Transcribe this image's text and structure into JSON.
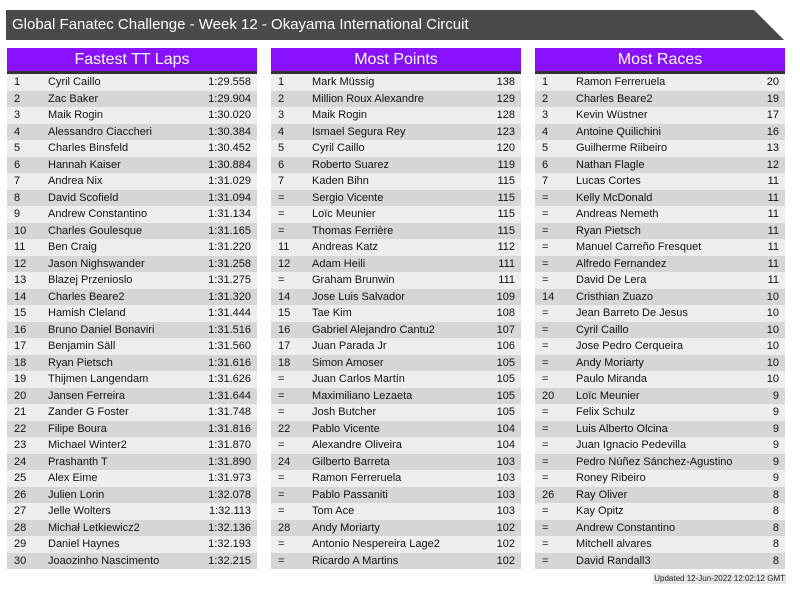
{
  "title": "Global Fanatec Challenge - Week 12 - Okayama International Circuit",
  "colors": {
    "header_bg": "#8811ff",
    "title_bg": "#4a4a4a",
    "row_light": "#eeeeee",
    "row_dark": "#d6d6d6"
  },
  "tables": [
    {
      "heading": "Fastest TT Laps",
      "rows": [
        [
          "1",
          "Cyril Caillo",
          "1:29.558"
        ],
        [
          "2",
          "Zac Baker",
          "1:29.904"
        ],
        [
          "3",
          "Maik Rogin",
          "1:30.020"
        ],
        [
          "4",
          "Alessandro Ciaccheri",
          "1:30.384"
        ],
        [
          "5",
          "Charles Binsfeld",
          "1:30.452"
        ],
        [
          "6",
          "Hannah Kaiser",
          "1:30.884"
        ],
        [
          "7",
          "Andrea Nix",
          "1:31.029"
        ],
        [
          "8",
          "David Scofield",
          "1:31.094"
        ],
        [
          "9",
          "Andrew Constantino",
          "1:31.134"
        ],
        [
          "10",
          "Charles Goulesque",
          "1:31.165"
        ],
        [
          "11",
          "Ben Craig",
          "1:31.220"
        ],
        [
          "12",
          "Jason Nighswander",
          "1:31.258"
        ],
        [
          "13",
          "Blazej Przenioslo",
          "1:31.275"
        ],
        [
          "14",
          "Charles Beare2",
          "1:31.320"
        ],
        [
          "15",
          "Hamish Cleland",
          "1:31.444"
        ],
        [
          "16",
          "Bruno Daniel Bonaviri",
          "1:31.516"
        ],
        [
          "17",
          "Benjamin Säll",
          "1:31.560"
        ],
        [
          "18",
          "Ryan Pietsch",
          "1:31.616"
        ],
        [
          "19",
          "Thijmen Langendam",
          "1:31.626"
        ],
        [
          "20",
          "Jansen Ferreira",
          "1:31.644"
        ],
        [
          "21",
          "Zander G Foster",
          "1:31.748"
        ],
        [
          "22",
          "Filipe Boura",
          "1:31.816"
        ],
        [
          "23",
          "Michael Winter2",
          "1:31.870"
        ],
        [
          "24",
          "Prashanth T",
          "1:31.890"
        ],
        [
          "25",
          "Alex Eime",
          "1:31.973"
        ],
        [
          "26",
          "Julien Lorin",
          "1:32.078"
        ],
        [
          "27",
          "Jelle Wolters",
          "1:32.113"
        ],
        [
          "28",
          "Michał Letkiewicz2",
          "1:32.136"
        ],
        [
          "29",
          "Daniel Haynes",
          "1:32.193"
        ],
        [
          "30",
          "Joaozinho Nascimento",
          "1:32.215"
        ]
      ]
    },
    {
      "heading": "Most Points",
      "rows": [
        [
          "1",
          "Mark Müssig",
          "138"
        ],
        [
          "2",
          "Million Roux Alexandre",
          "129"
        ],
        [
          "3",
          "Maik Rogin",
          "128"
        ],
        [
          "4",
          "Ismael Segura Rey",
          "123"
        ],
        [
          "5",
          "Cyril Caillo",
          "120"
        ],
        [
          "6",
          "Roberto Suarez",
          "119"
        ],
        [
          "7",
          "Kaden Bihn",
          "115"
        ],
        [
          "=",
          "Sergio Vicente",
          "115"
        ],
        [
          "=",
          "Loïc Meunier",
          "115"
        ],
        [
          "=",
          "Thomas Ferrière",
          "115"
        ],
        [
          "11",
          "Andreas Katz",
          "112"
        ],
        [
          "12",
          "Adam Heili",
          "111"
        ],
        [
          "=",
          "Graham Brunwin",
          "111"
        ],
        [
          "14",
          "Jose Luis Salvador",
          "109"
        ],
        [
          "15",
          "Tae Kim",
          "108"
        ],
        [
          "16",
          "Gabriel Alejandro Cantu2",
          "107"
        ],
        [
          "17",
          "Juan Parada Jr",
          "106"
        ],
        [
          "18",
          "Simon Amoser",
          "105"
        ],
        [
          "=",
          "Juan Carlos Martín",
          "105"
        ],
        [
          "=",
          "Maximiliano Lezaeta",
          "105"
        ],
        [
          "=",
          "Josh Butcher",
          "105"
        ],
        [
          "22",
          "Pablo Vicente",
          "104"
        ],
        [
          "=",
          "Alexandre Oliveira",
          "104"
        ],
        [
          "24",
          "Gilberto Barreta",
          "103"
        ],
        [
          "=",
          "Ramon Ferreruela",
          "103"
        ],
        [
          "=",
          "Pablo Passaniti",
          "103"
        ],
        [
          "=",
          "Tom Ace",
          "103"
        ],
        [
          "28",
          "Andy Moriarty",
          "102"
        ],
        [
          "=",
          "Antonio Nespereira Lage2",
          "102"
        ],
        [
          "=",
          "Ricardo A Martins",
          "102"
        ]
      ]
    },
    {
      "heading": "Most Races",
      "rows": [
        [
          "1",
          "Ramon Ferreruela",
          "20"
        ],
        [
          "2",
          "Charles Beare2",
          "19"
        ],
        [
          "3",
          "Kevin Wüstner",
          "17"
        ],
        [
          "4",
          "Antoine Quilichini",
          "16"
        ],
        [
          "5",
          "Guilherme Riibeiro",
          "13"
        ],
        [
          "6",
          "Nathan Flagle",
          "12"
        ],
        [
          "7",
          "Lucas Cortes",
          "11"
        ],
        [
          "=",
          "Kelly McDonald",
          "11"
        ],
        [
          "=",
          "Andreas Nemeth",
          "11"
        ],
        [
          "=",
          "Ryan Pietsch",
          "11"
        ],
        [
          "=",
          "Manuel Carreño Fresquet",
          "11"
        ],
        [
          "=",
          "Alfredo Fernandez",
          "11"
        ],
        [
          "=",
          "David De Lera",
          "11"
        ],
        [
          "14",
          "Cristhian Zuazo",
          "10"
        ],
        [
          "=",
          "Jean Barreto De Jesus",
          "10"
        ],
        [
          "=",
          "Cyril Caillo",
          "10"
        ],
        [
          "=",
          "Jose Pedro Cerqueira",
          "10"
        ],
        [
          "=",
          "Andy Moriarty",
          "10"
        ],
        [
          "=",
          "Paulo Miranda",
          "10"
        ],
        [
          "20",
          "Loïc Meunier",
          "9"
        ],
        [
          "=",
          "Felix Schulz",
          "9"
        ],
        [
          "=",
          "Luis Alberto Olcina",
          "9"
        ],
        [
          "=",
          "Juan Ignacio Pedevilla",
          "9"
        ],
        [
          "=",
          "Pedro Núñez Sánchez-Agustino",
          "9"
        ],
        [
          "=",
          "Roney Ribeiro",
          "9"
        ],
        [
          "26",
          "Ray Oliver",
          "8"
        ],
        [
          "=",
          "Kay Opitz",
          "8"
        ],
        [
          "=",
          "Andrew Constantino",
          "8"
        ],
        [
          "=",
          "Mitchell alvares",
          "8"
        ],
        [
          "=",
          "David Randall3",
          "8"
        ]
      ]
    }
  ],
  "updated": "Updated 12-Jun-2022 12:02:12 GMT"
}
